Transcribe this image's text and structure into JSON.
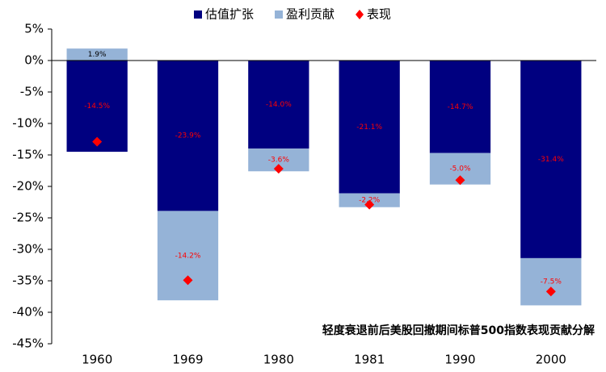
{
  "chart_data": {
    "type": "bar",
    "stacked": true,
    "annotation": "轻度衰退前后美股回撤期间标普500指数表现贡献分解",
    "categories": [
      "1960",
      "1969",
      "1980",
      "1981",
      "1990",
      "2000"
    ],
    "series": [
      {
        "name": "估值扩张",
        "color": "#000080",
        "values": [
          -14.5,
          -23.9,
          -14.0,
          -21.1,
          -14.7,
          -31.4
        ],
        "value_labels": [
          "-14.5%",
          "-23.9%",
          "-14.0%",
          "-21.1%",
          "-14.7%",
          "-31.4%"
        ]
      },
      {
        "name": "盈利贡献",
        "color": "#95b3d7",
        "values": [
          1.9,
          -14.2,
          -3.6,
          -2.2,
          -5.0,
          -7.5
        ],
        "value_labels": [
          "1.9%",
          "-14.2%",
          "-3.6%",
          "-2.2%",
          "-5.0%",
          "-7.5%"
        ]
      },
      {
        "name": "表现",
        "type": "scatter",
        "color": "#ff0000",
        "values": [
          -12.9,
          -34.9,
          -17.2,
          -22.9,
          -19.0,
          -36.7
        ]
      }
    ],
    "ylim": [
      -45,
      5
    ],
    "yticks": [
      {
        "value": 5,
        "label": "5%"
      },
      {
        "value": 0,
        "label": "0%"
      },
      {
        "value": -5,
        "label": "-5%"
      },
      {
        "value": -10,
        "label": "-10%"
      },
      {
        "value": -15,
        "label": "-15%"
      },
      {
        "value": -20,
        "label": "-20%"
      },
      {
        "value": -25,
        "label": "-25%"
      },
      {
        "value": -30,
        "label": "-30%"
      },
      {
        "value": -35,
        "label": "-35%"
      },
      {
        "value": -40,
        "label": "-40%"
      },
      {
        "value": -45,
        "label": "-45%"
      }
    ],
    "grid": false
  }
}
